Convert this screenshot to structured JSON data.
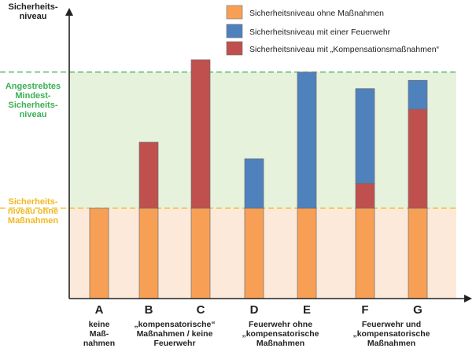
{
  "chart_data": {
    "type": "bar",
    "stacked": true,
    "y_axis_label": [
      "Sicherheits-",
      "niveau"
    ],
    "levels": {
      "target": {
        "label": [
          "Angestrebtes",
          "Mindest-",
          "Sicherheits-",
          "niveau"
        ],
        "value": 2.65,
        "color": "#3cb054"
      },
      "baseline": {
        "label": [
          "Sicherheits-",
          "niveau ohne",
          "Maßnahmen"
        ],
        "value": 1.0,
        "color": "#f2b820"
      }
    },
    "ylim": [
      0,
      3.0
    ],
    "categories": [
      "A",
      "B",
      "C",
      "D",
      "E",
      "F",
      "G"
    ],
    "category_descriptions": [
      {
        "lines": [
          "keine",
          "Maß-",
          "nahmen"
        ],
        "under": [
          "A"
        ]
      },
      {
        "lines": [
          "„kompensatorische“",
          "Maßnahmen / keine",
          "Feuerwehr"
        ],
        "under": [
          "B",
          "C"
        ]
      },
      {
        "lines": [
          "Feuerwehr ohne",
          "„kompensatorische",
          "Maßnahmen"
        ],
        "under": [
          "D",
          "E"
        ]
      },
      {
        "lines": [
          "Feuerwehr und",
          "„kompensatorische",
          "Maßnahmen"
        ],
        "under": [
          "F",
          "G"
        ]
      }
    ],
    "series": [
      {
        "name": "Sicherheitsniveau ohne Maßnahmen",
        "color": "#f7a055",
        "values": [
          1.0,
          1.0,
          1.0,
          1.0,
          1.0,
          1.0,
          1.0
        ]
      },
      {
        "name": "Sicherheitsniveau mit „Kompensationsmaßnahmen“",
        "color": "#c0504d",
        "values": [
          0,
          0.8,
          1.8,
          0,
          0,
          0.3,
          1.2
        ]
      },
      {
        "name": "Sicherheitsniveau mit einer Feuerwehr",
        "color": "#4f81bd",
        "values": [
          0,
          0,
          0,
          0.6,
          1.65,
          1.15,
          0.35
        ]
      }
    ],
    "legend": [
      {
        "label": "Sicherheitsniveau ohne Maßnahmen",
        "color": "#f7a055"
      },
      {
        "label": "Sicherheitsniveau mit einer Feuerwehr",
        "color": "#4f81bd"
      },
      {
        "label": "Sicherheitsniveau mit „Kompensationsmaßnahmen“",
        "color": "#c0504d"
      }
    ]
  }
}
